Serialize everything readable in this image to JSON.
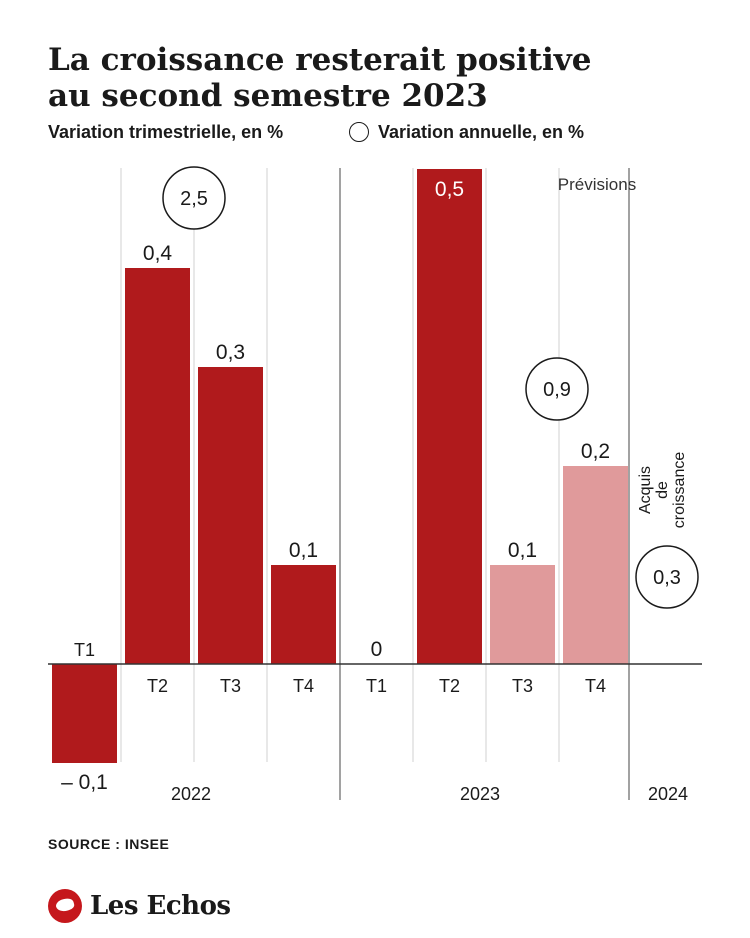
{
  "header": {
    "title_line1": "La croissance resterait positive",
    "title_line2": "au second semestre 2023",
    "subtitle_quarterly": "Variation trimestrielle, en %",
    "subtitle_annual": "Variation annuelle, en %"
  },
  "footer": {
    "source": "SOURCE : INSEE",
    "brand": "Les Echos"
  },
  "colors": {
    "actual": "#b01a1c",
    "forecast": "#e09a9b"
  },
  "chart_data": {
    "type": "bar",
    "title": "La croissance resterait positive au second semestre 2023",
    "ylabel": "",
    "ylim": [
      -0.1,
      0.5
    ],
    "series": [
      {
        "name": "Variation trimestrielle, en %",
        "values": [
          -0.1,
          0.4,
          0.3,
          0.1,
          0,
          0.5,
          0.1,
          0.2
        ]
      }
    ],
    "categories": [
      "T1",
      "T2",
      "T3",
      "T4",
      "T1",
      "T2",
      "T3",
      "T4"
    ],
    "value_labels": [
      "– 0,1",
      "0,4",
      "0,3",
      "0,1",
      "0",
      "0,5",
      "0,1",
      "0,2"
    ],
    "forecast": [
      false,
      false,
      false,
      false,
      false,
      false,
      true,
      true
    ],
    "years": [
      {
        "label": "2022",
        "annual": 2.5,
        "annual_label": "2,5"
      },
      {
        "label": "2023",
        "annual": 0.9,
        "annual_label": "0,9"
      },
      {
        "label": "2024",
        "annual": 0.3,
        "annual_label": "0,3"
      }
    ],
    "forecast_label": "Prévisions",
    "carryover_label": [
      "Acquis",
      "de",
      "croissance"
    ]
  }
}
